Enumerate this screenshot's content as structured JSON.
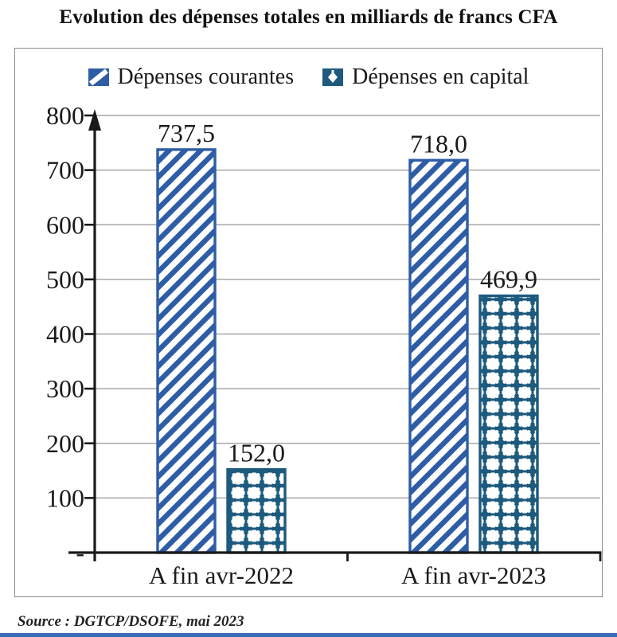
{
  "page": {
    "title": "Evolution des dépenses totales en milliards de francs CFA",
    "source": "Source : DGTCP/DSOFE, mai 2023"
  },
  "chart_data": {
    "type": "bar",
    "title": "Evolution des dépenses totales en milliards de francs CFA",
    "categories": [
      "A fin avr-2022",
      "A fin avr-2023"
    ],
    "series": [
      {
        "name": "Dépenses courantes",
        "values": [
          737.5,
          718.0
        ],
        "value_labels": [
          "737,5",
          "718,0"
        ],
        "pattern": "diagonal-hatch",
        "color": "#2e5da6"
      },
      {
        "name": "Dépenses en capital",
        "values": [
          152.0,
          469.9
        ],
        "value_labels": [
          "152,0",
          "469,9"
        ],
        "pattern": "diamond-lattice",
        "color": "#1d5a7e"
      }
    ],
    "ylim": [
      0,
      800
    ],
    "ytick_interval": 100,
    "ytick_labels": [
      "800",
      "700",
      "600",
      "500",
      "400",
      "300",
      "200",
      "100",
      "-"
    ],
    "xlabel": "",
    "ylabel": "",
    "grid": true,
    "gridline_color": "#a6a6a6",
    "axis_color": "#1a1a1a",
    "legend_position": "top",
    "unit": "milliards de francs CFA"
  }
}
